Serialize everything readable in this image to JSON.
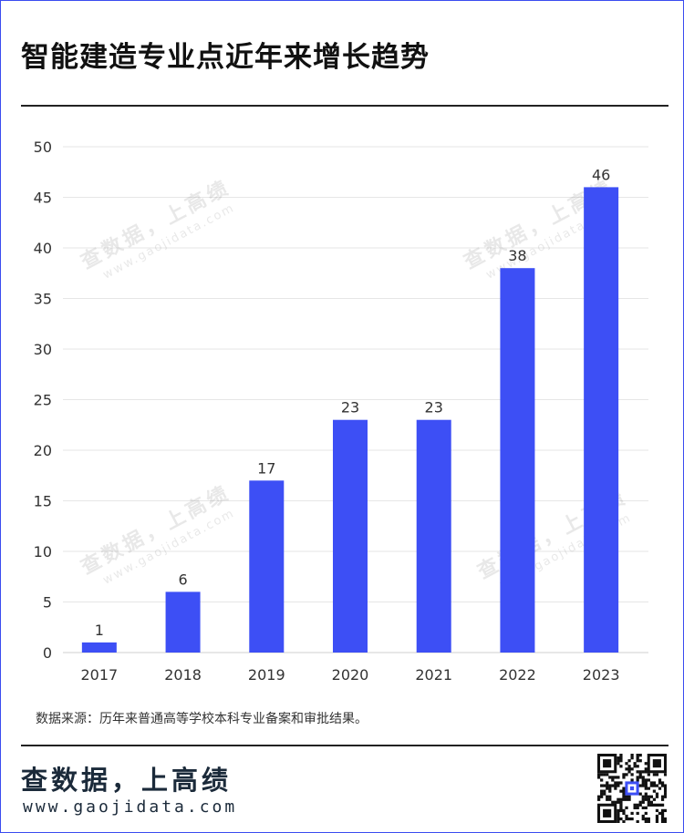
{
  "title": "智能建造专业点近年来增长趋势",
  "source_note": "数据来源：历年来普通高等学校本科专业备案和审批结果。",
  "brand": {
    "name": "查数据，上高绩",
    "url": "www.gaojidata.com"
  },
  "watermark": {
    "line1": "查数据，上高绩",
    "line2": "www.gaojidata.com"
  },
  "colors": {
    "bar": "#3d4ff5",
    "frame": "#3b4cf0",
    "grid": "#e6e6e6",
    "text": "#333333"
  },
  "chart_data": {
    "type": "bar",
    "categories": [
      "2017",
      "2018",
      "2019",
      "2020",
      "2021",
      "2022",
      "2023"
    ],
    "values": [
      1,
      6,
      17,
      23,
      23,
      38,
      46
    ],
    "title": "",
    "xlabel": "",
    "ylabel": "",
    "ylim": [
      0,
      50
    ],
    "yticks": [
      0,
      5,
      10,
      15,
      20,
      25,
      30,
      35,
      40,
      45,
      50
    ],
    "grid": true,
    "data_labels": true
  }
}
